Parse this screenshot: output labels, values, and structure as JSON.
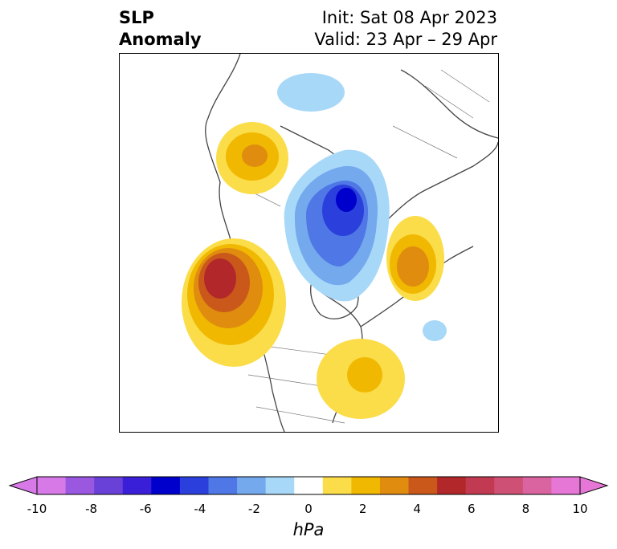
{
  "title": {
    "left_line1": "SLP",
    "left_line2": "Anomaly",
    "init": "Init: Sat 08 Apr 2023",
    "valid": "Valid: 23 Apr – 29 Apr"
  },
  "map": {
    "projection": "north-polar-stereographic",
    "region": "North America / Arctic / North Atlantic",
    "features": [
      {
        "name": "positive-anomaly-north-pacific",
        "sign": "positive",
        "peak_hpa": 6
      },
      {
        "name": "positive-anomaly-nw-siberia",
        "sign": "positive",
        "peak_hpa": 3
      },
      {
        "name": "positive-anomaly-scandinavia",
        "sign": "positive",
        "peak_hpa": 4
      },
      {
        "name": "positive-anomaly-western-atlantic",
        "sign": "positive",
        "peak_hpa": 2
      },
      {
        "name": "negative-anomaly-arctic",
        "sign": "negative",
        "peak_hpa": -6
      },
      {
        "name": "negative-anomaly-central-siberia",
        "sign": "negative",
        "peak_hpa": -2
      },
      {
        "name": "negative-anomaly-north-atlantic",
        "sign": "negative",
        "peak_hpa": -2
      }
    ]
  },
  "colorbar": {
    "units": "hPa",
    "extend": "both",
    "bins": [
      -10,
      -9,
      -8,
      -7,
      -6,
      -5,
      -4,
      -3,
      -2,
      -1,
      1,
      2,
      3,
      4,
      5,
      6,
      7,
      8,
      9,
      10
    ],
    "colors_low": [
      "#d77ae8",
      "#9a58e0",
      "#6a41d8",
      "#3a1fd8",
      "#0000cc",
      "#2a3fdc",
      "#4f77e6",
      "#74a9ee",
      "#a8d8f8"
    ],
    "neutral_color": "#ffffff",
    "colors_high": [
      "#fbdd49",
      "#f0b800",
      "#e08c0f",
      "#c9581a",
      "#b2272a",
      "#c23a51",
      "#cf5075",
      "#d964a0",
      "#e677d6"
    ],
    "tick_labels": [
      "-10",
      "-8",
      "-6",
      "-4",
      "-2",
      "0",
      "2",
      "4",
      "6",
      "8",
      "10"
    ]
  }
}
